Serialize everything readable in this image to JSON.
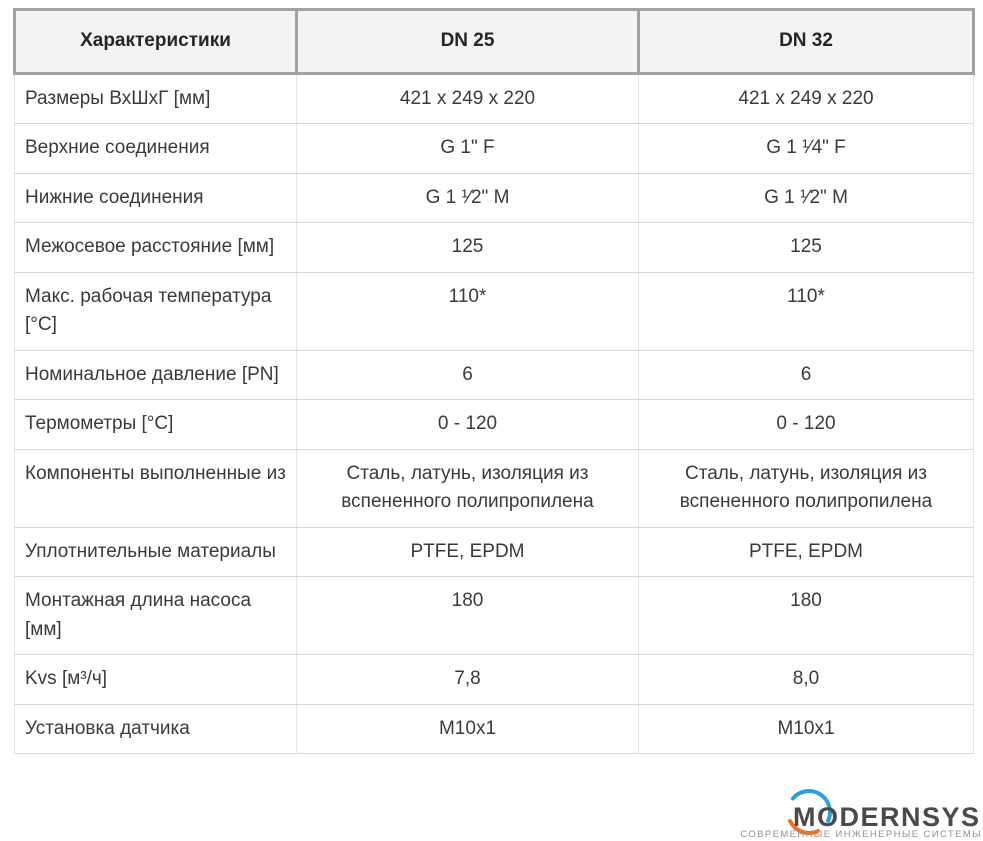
{
  "table": {
    "columns": [
      {
        "key": "label",
        "header": "Характеристики"
      },
      {
        "key": "dn25",
        "header": "DN 25"
      },
      {
        "key": "dn32",
        "header": "DN 32"
      }
    ],
    "rows": [
      {
        "label": "Размеры ВхШхГ [мм]",
        "dn25": "421 x 249 x 220",
        "dn32": "421 x 249 x 220"
      },
      {
        "label": "Верхние соединения",
        "dn25": "G 1\" F",
        "dn32": "G 1 ¹⁄4\" F"
      },
      {
        "label": "Нижние соединения",
        "dn25": "G 1 ¹⁄2\" M",
        "dn32": "G 1 ¹⁄2\" M"
      },
      {
        "label": "Межосевое расстояние [мм]",
        "dn25": "125",
        "dn32": "125"
      },
      {
        "label": "Макс. рабочая температура [°C]",
        "dn25": "110*",
        "dn32": "110*"
      },
      {
        "label": "Номинальное давление [PN]",
        "dn25": "6",
        "dn32": "6"
      },
      {
        "label": "Термометры [°C]",
        "dn25": "0 - 120",
        "dn32": "0 - 120"
      },
      {
        "label": "Компоненты выполненные из",
        "dn25": "Сталь, латунь, изоляция из вспененного полипропилена",
        "dn32": "Сталь, латунь, изоляция из вспененного полипропилена"
      },
      {
        "label": "Уплотнительные материалы",
        "dn25": "PTFE, EPDM",
        "dn32": "PTFE, EPDM"
      },
      {
        "label": "Монтажная длина насоса [мм]",
        "dn25": "180",
        "dn32": "180"
      },
      {
        "label": "Kvs [м³/ч]",
        "dn25": "7,8",
        "dn32": "8,0"
      },
      {
        "label": "Установка датчика",
        "dn25": "M10x1",
        "dn32": "M10x1"
      }
    ]
  },
  "watermark": {
    "brand": "MODERNSYS",
    "tagline": "СОВРЕМЕННЫЕ ИНЖЕНЕРНЫЕ СИСТЕМЫ",
    "colors": {
      "brand_text": "#4a4a4c",
      "ring_top": "#2a9fd8",
      "ring_bottom": "#f0701f",
      "tagline_text": "#8f9194"
    }
  },
  "colors": {
    "header_bg": "#f3f3f4",
    "header_border": "#a0a3a6",
    "header_text": "#252525",
    "body_text": "#3a3a3a",
    "row_border": "#d8d9da",
    "column_border": "#e4e5e6"
  }
}
